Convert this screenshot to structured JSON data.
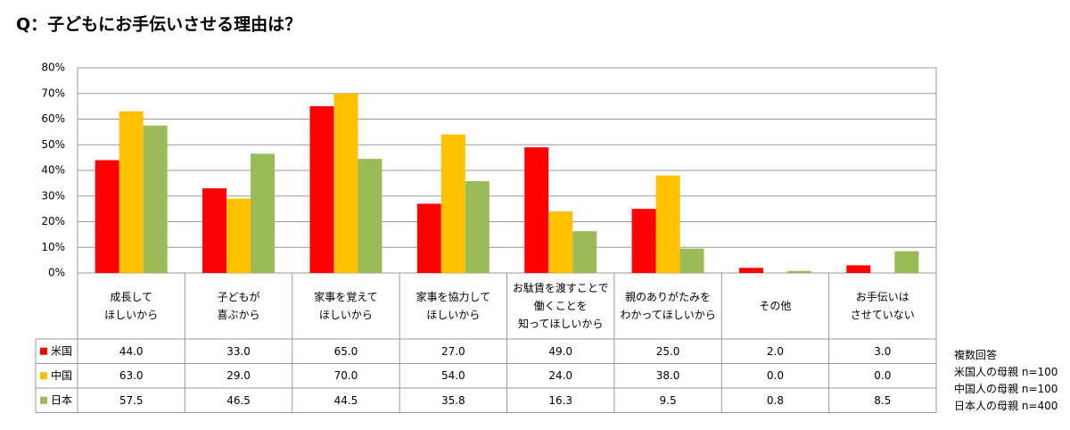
{
  "chart_data": {
    "type": "bar",
    "title": "Q：子どもにお手伝いさせる理由は？",
    "categories": [
      "成長して\nほしいから",
      "子どもが\n喜ぶから",
      "家事を覚えて\nほしいから",
      "家事を協力して\nほしいから",
      "お駄賃を渡すことで\n働くことを\n知ってほしいから",
      "親のありがたみを\nわかってほしいから",
      "その他",
      "お手伝いは\nさせていない"
    ],
    "series": [
      {
        "name": "米国",
        "color": "#ff0000",
        "values": [
          44,
          33,
          65,
          27,
          49,
          25,
          2,
          3
        ],
        "value_labels": [
          "44.0",
          "33.0",
          "65.0",
          "27.0",
          "49.0",
          "25.0",
          "2.0",
          "3.0"
        ]
      },
      {
        "name": "中国",
        "color": "#ffc000",
        "values": [
          63,
          29,
          70,
          54,
          24,
          38,
          0,
          0
        ],
        "value_labels": [
          "63.0",
          "29.0",
          "70.0",
          "54.0",
          "24.0",
          "38.0",
          "0.0",
          "0.0"
        ]
      },
      {
        "name": "日本",
        "color": "#9bbb59",
        "values": [
          57.5,
          46.5,
          44.5,
          35.8,
          16.3,
          9.5,
          0.8,
          8.5
        ],
        "value_labels": [
          "57.5",
          "46.5",
          "44.5",
          "35.8",
          "16.3",
          "9.5",
          "0.8",
          "8.5"
        ]
      }
    ],
    "ylim": [
      0,
      80
    ],
    "yticks": [
      {
        "value": 0,
        "label": "0%"
      },
      {
        "value": 10,
        "label": "10%"
      },
      {
        "value": 20,
        "label": "20%"
      },
      {
        "value": 30,
        "label": "30%"
      },
      {
        "value": 40,
        "label": "40%"
      },
      {
        "value": 50,
        "label": "50%"
      },
      {
        "value": 60,
        "label": "60%"
      },
      {
        "value": 70,
        "label": "70%"
      },
      {
        "value": 80,
        "label": "80%"
      }
    ],
    "grid": true,
    "notes": [
      "複数回答",
      "米国人の母親 n=100",
      "中国人の母親 n=100",
      "日本人の母親 n=400"
    ]
  }
}
